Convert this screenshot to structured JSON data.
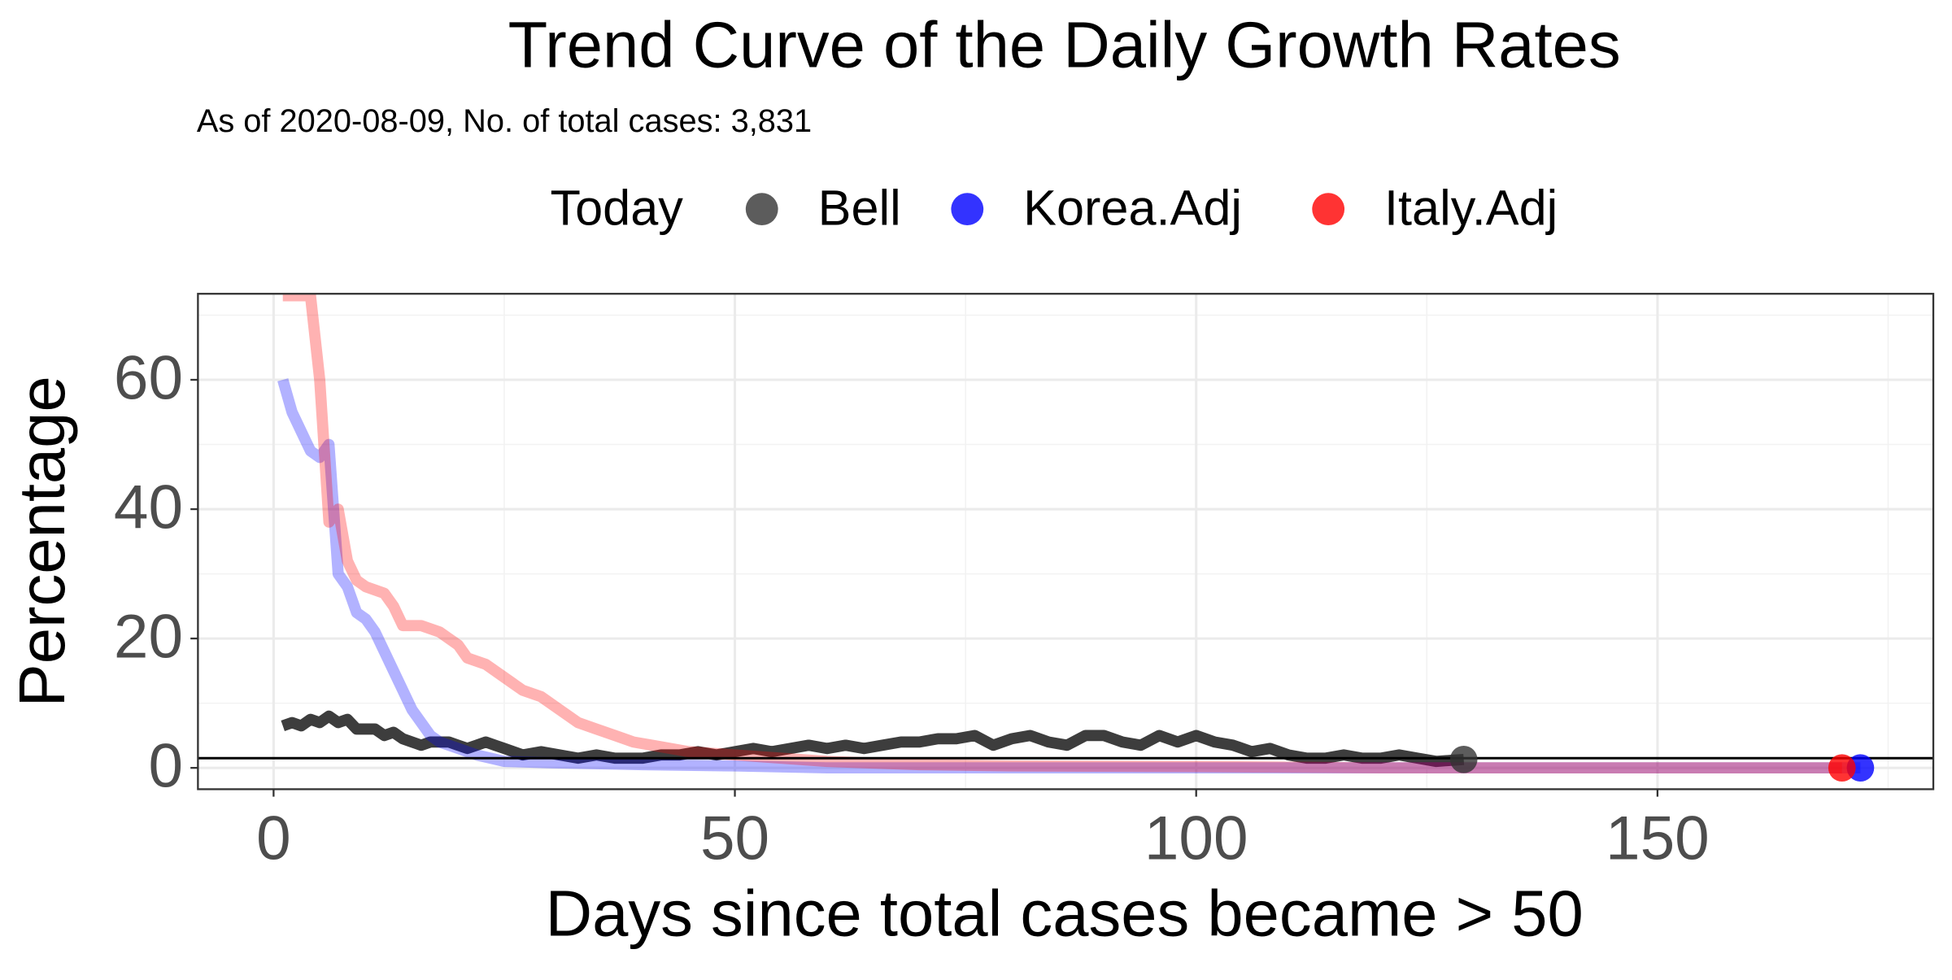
{
  "chart_data": {
    "type": "line",
    "title": "Trend Curve of the Daily Growth Rates",
    "subtitle": "As of 2020-08-09, No. of total cases: 3,831",
    "x_label": "Days since total cases became > 50",
    "y_label": "Percentage",
    "legend_title": "Today",
    "legend_position": "top",
    "grid": true,
    "xlim": [
      -8.2,
      179.9
    ],
    "ylim": [
      -3.3,
      73.3
    ],
    "xticks": [
      0,
      50,
      100,
      150
    ],
    "yticks": [
      0,
      20,
      40,
      60
    ],
    "x_minor_grid": [
      25,
      75,
      125,
      175
    ],
    "y_minor_grid": [
      10,
      30,
      50,
      70
    ],
    "hline": 1.5,
    "series": [
      {
        "name": "Bell",
        "color": "#333333",
        "alpha": 1,
        "x": [
          1,
          2,
          3,
          4,
          5,
          6,
          7,
          8,
          9,
          10,
          11,
          12,
          13,
          14,
          15,
          16,
          17,
          18,
          19,
          20,
          21,
          22,
          23,
          24,
          25,
          27,
          29,
          31,
          33,
          35,
          37,
          40,
          42,
          44,
          46,
          48,
          50,
          52,
          54,
          56,
          58,
          60,
          62,
          64,
          66,
          68,
          70,
          72,
          74,
          76,
          78,
          80,
          82,
          84,
          86,
          88,
          90,
          92,
          94,
          96,
          98,
          100,
          102,
          104,
          106,
          108,
          110,
          112,
          114,
          116,
          118,
          120,
          122,
          124,
          126,
          128,
          129
        ],
        "values": [
          6.5,
          7,
          6.5,
          7.5,
          7,
          8,
          7,
          7.5,
          6,
          6,
          6,
          5,
          5.5,
          4.5,
          4,
          3.5,
          4,
          4,
          4,
          3.5,
          3,
          3.5,
          4,
          3.5,
          3,
          2,
          2.5,
          2,
          1.5,
          2,
          1.5,
          1.5,
          2,
          2,
          2.5,
          2,
          2.5,
          3,
          2.5,
          3,
          3.5,
          3,
          3.5,
          3,
          3.5,
          4,
          4,
          4.5,
          4.5,
          5,
          3.5,
          4.5,
          5,
          4,
          3.5,
          5,
          5,
          4,
          3.5,
          5,
          4,
          5,
          4,
          3.5,
          2.5,
          3,
          2,
          1.5,
          1.5,
          2,
          1.5,
          1.5,
          2,
          1.5,
          1,
          1.2,
          1.3
        ]
      },
      {
        "name": "Korea.Adj",
        "color": "#0000ff",
        "alpha": 0.3,
        "x": [
          1,
          2,
          3,
          4,
          5,
          6,
          7,
          8,
          9,
          10,
          11,
          12,
          13,
          14,
          15,
          16,
          17,
          18,
          20,
          22,
          25,
          30,
          40,
          50,
          60,
          80,
          100,
          120,
          140,
          160,
          172
        ],
        "values": [
          60,
          55,
          52,
          49,
          48,
          50,
          30,
          28,
          24,
          23,
          21,
          18,
          15,
          12,
          9,
          7,
          5,
          4,
          3,
          2,
          1,
          0.8,
          0.5,
          0.3,
          0,
          0,
          0,
          0,
          0,
          0,
          0
        ]
      },
      {
        "name": "Italy.Adj",
        "color": "#ff0000",
        "alpha": 0.3,
        "x": [
          1,
          3,
          4,
          5,
          6,
          7,
          8,
          9,
          10,
          12,
          13,
          14,
          16,
          18,
          19,
          20,
          21,
          23,
          25,
          27,
          29,
          31,
          33,
          35,
          37,
          39,
          41,
          45,
          50,
          55,
          60,
          70,
          80,
          100,
          120,
          140,
          160,
          170
        ],
        "values": [
          73,
          73,
          73,
          60,
          38,
          40,
          32,
          29,
          28,
          27,
          25,
          22,
          22,
          21,
          20,
          19,
          17,
          16,
          14,
          12,
          11,
          9,
          7,
          6,
          5,
          4,
          3.5,
          2.5,
          2,
          1.5,
          1,
          0.5,
          0.3,
          0.2,
          0,
          0,
          0,
          0
        ]
      }
    ]
  }
}
